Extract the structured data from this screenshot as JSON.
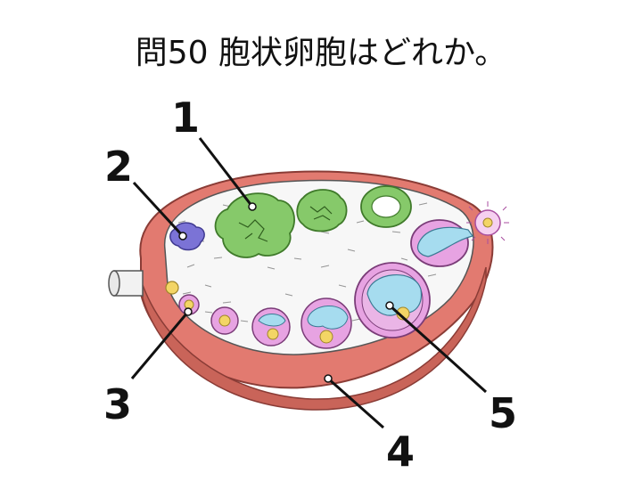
{
  "title": "問50 胞状卵胞はどれか。",
  "labels": [
    "1",
    "2",
    "3",
    "4",
    "5"
  ],
  "colors": {
    "capsule": "#e27a70",
    "capsule_dark": "#c25a52",
    "stroma": "#f7f7f7",
    "corpus_luteum": "#86c96a",
    "corpus_albicans": "#7b73d6",
    "follicle_cells": "#e7a3e2",
    "antrum": "#a6dcef",
    "oocyte": "#f3d565"
  }
}
